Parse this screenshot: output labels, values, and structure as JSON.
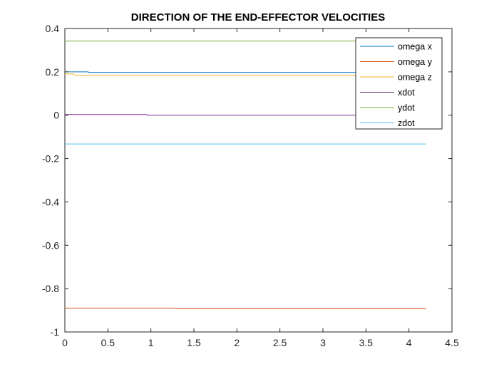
{
  "chart_data": {
    "type": "line",
    "title": "DIRECTION OF THE END-EFFECTOR VELOCITIES",
    "xlabel": "",
    "ylabel": "",
    "xlim": [
      0,
      4.5
    ],
    "ylim": [
      -1,
      0.4
    ],
    "x_ticks": [
      0,
      0.5,
      1,
      1.5,
      2,
      2.5,
      3,
      3.5,
      4,
      4.5
    ],
    "x_tick_labels": [
      "0",
      "0.5",
      "1",
      "1.5",
      "2",
      "2.5",
      "3",
      "3.5",
      "4",
      "4.5"
    ],
    "y_ticks": [
      -1,
      -0.8,
      -0.6,
      -0.4,
      -0.2,
      0,
      0.2,
      0.4
    ],
    "y_tick_labels": [
      "-1",
      "-0.8",
      "-0.6",
      "-0.4",
      "-0.2",
      "0",
      "0.2",
      "0.4"
    ],
    "grid": false,
    "legend_position": "top-right",
    "series": [
      {
        "name": "omega x",
        "color": "#0072BD",
        "x": [
          0,
          0.27,
          0.28,
          4.2
        ],
        "y": [
          0.2,
          0.2,
          0.197,
          0.197
        ]
      },
      {
        "name": "omega y",
        "color": "#D95319",
        "x": [
          0,
          1.28,
          1.29,
          4.2
        ],
        "y": [
          -0.89,
          -0.89,
          -0.893,
          -0.893
        ]
      },
      {
        "name": "omega z",
        "color": "#EDB120",
        "x": [
          0,
          0.1,
          0.12,
          4.2
        ],
        "y": [
          0.19,
          0.19,
          0.184,
          0.184
        ]
      },
      {
        "name": "xdot",
        "color": "#7E2F8E",
        "x": [
          0,
          0.95,
          0.96,
          4.2
        ],
        "y": [
          0.003,
          0.003,
          0.0,
          0.0
        ]
      },
      {
        "name": "ydot",
        "color": "#77AC30",
        "x": [
          0,
          4.2
        ],
        "y": [
          0.342,
          0.342
        ]
      },
      {
        "name": "zdot",
        "color": "#4DBEEE",
        "x": [
          0,
          4.2
        ],
        "y": [
          -0.133,
          -0.133
        ]
      }
    ]
  }
}
